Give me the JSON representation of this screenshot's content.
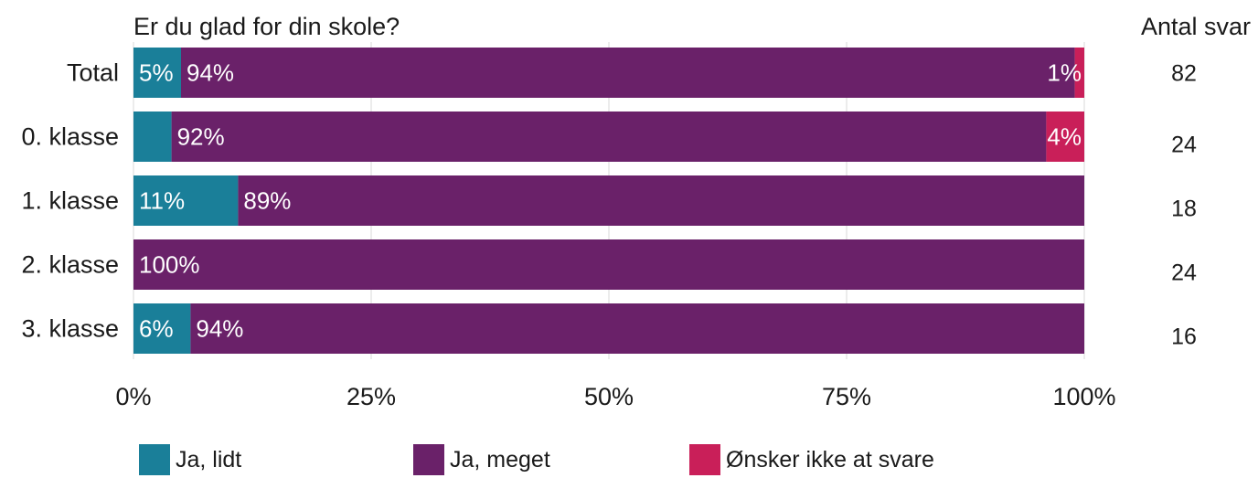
{
  "chart_data": {
    "type": "bar",
    "orientation": "horizontal",
    "stacked": true,
    "title": "Er du glad for din skole?",
    "count_header": "Antal svar",
    "categories": [
      "Total",
      "0. klasse",
      "1. klasse",
      "2. klasse",
      "3. klasse"
    ],
    "counts": [
      "82",
      "24",
      "18",
      "24",
      "16"
    ],
    "series": [
      {
        "name": "Ja, lidt",
        "color": "#1a7f99",
        "values": [
          5,
          4,
          11,
          0,
          6
        ],
        "labels": [
          "5%",
          "",
          "11%",
          "",
          "6%"
        ]
      },
      {
        "name": "Ja, meget",
        "color": "#6a2169",
        "values": [
          94,
          92,
          89,
          100,
          94
        ],
        "labels": [
          "94%",
          "92%",
          "89%",
          "100%",
          "94%"
        ]
      },
      {
        "name": "Ønsker ikke at svare",
        "color": "#c91f59",
        "values": [
          1,
          4,
          0,
          0,
          0
        ],
        "labels": [
          "1%",
          "4%",
          "",
          "",
          ""
        ]
      }
    ],
    "x_ticks": [
      "0%",
      "25%",
      "50%",
      "75%",
      "100%"
    ],
    "xlim": [
      0,
      100
    ],
    "grid": true,
    "legend_position": "bottom"
  }
}
